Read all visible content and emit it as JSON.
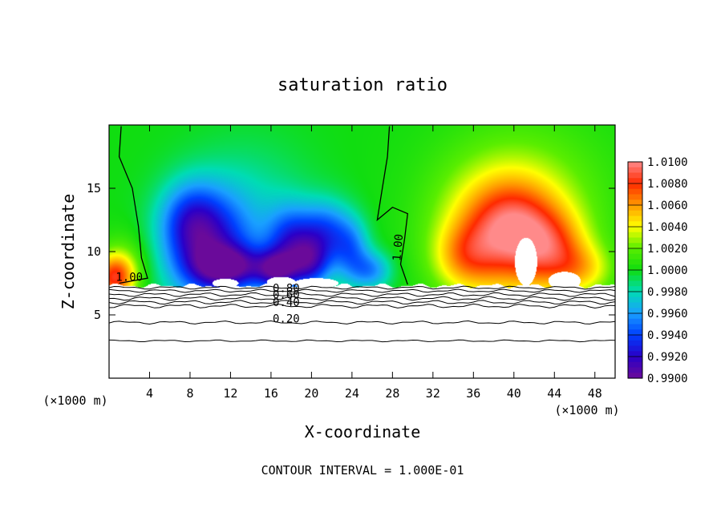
{
  "chart_data": {
    "type": "heatmap",
    "title": "saturation ratio",
    "xlabel": "X-coordinate",
    "ylabel": "Z-coordinate",
    "x_unit_label": "(×1000 m)",
    "y_unit_label": "(×1000 m)",
    "xlim": [
      0,
      50
    ],
    "ylim": [
      0,
      20
    ],
    "x_ticks": [
      4,
      8,
      12,
      16,
      20,
      24,
      28,
      32,
      36,
      40,
      44,
      48
    ],
    "x_tick_labels": [
      "4",
      "8",
      "12",
      "16",
      "20",
      "24",
      "28",
      "32",
      "36",
      "40",
      "44",
      "48"
    ],
    "y_ticks": [
      5,
      10,
      15
    ],
    "y_tick_labels": [
      "5",
      "10",
      "15"
    ],
    "footer": "CONTOUR INTERVAL = 1.000E-01",
    "colorbar": {
      "min": 0.99,
      "max": 1.01,
      "tick_values": [
        1.01,
        1.008,
        1.006,
        1.004,
        1.002,
        1.0,
        0.998,
        0.996,
        0.994,
        0.992,
        0.99
      ],
      "tick_labels": [
        "1.0100",
        "1.0080",
        "1.0060",
        "1.0040",
        "1.0020",
        "1.0000",
        "0.9980",
        "0.9960",
        "0.9940",
        "0.9920",
        "0.9900"
      ],
      "colors": [
        "#6a0a9a",
        "#2a00c8",
        "#0040ff",
        "#1aa0ff",
        "#00dcb4",
        "#10dd10",
        "#5aee00",
        "#ffff00",
        "#ff9a00",
        "#ff2a00",
        "#ff8a8a"
      ]
    },
    "contour_labels": [
      {
        "text": "1.00",
        "x": 2,
        "z": 7.7
      },
      {
        "text": "1.00",
        "x": 28.9,
        "z": 10.3
      },
      {
        "text": "0.80",
        "x": 17.5,
        "z": 6.8
      },
      {
        "text": "0.60",
        "x": 17.5,
        "z": 6.3
      },
      {
        "text": "0.40",
        "x": 17.5,
        "z": 5.7
      },
      {
        "text": "0.20",
        "x": 17.5,
        "z": 4.4
      }
    ],
    "lower_contours": [
      {
        "z": 7.15,
        "wiggle": 0.08
      },
      {
        "z": 6.9,
        "wiggle": 0.08
      },
      {
        "z": 6.6,
        "wiggle": 0.1
      },
      {
        "z": 6.3,
        "wiggle": 0.1
      },
      {
        "z": 6.0,
        "wiggle": 0.1
      },
      {
        "z": 5.7,
        "wiggle": 0.1
      },
      {
        "z": 4.4,
        "wiggle": 0.08
      },
      {
        "z": 2.95,
        "wiggle": 0.05
      }
    ],
    "cloud_base_z": 7.3,
    "blobs": [
      {
        "x": 0.5,
        "z": 7.9,
        "rx": 2,
        "rz": 1.8,
        "v": 0.007
      },
      {
        "x": 1.5,
        "z": 9.0,
        "rx": 2.5,
        "rz": 2.5,
        "v": 0.002
      },
      {
        "x": 10,
        "z": 10,
        "rx": 4.5,
        "rz": 4.5,
        "v": -0.007
      },
      {
        "x": 8,
        "z": 12.5,
        "rx": 3,
        "rz": 3,
        "v": -0.004
      },
      {
        "x": 12,
        "z": 8.8,
        "rx": 3.5,
        "rz": 1.6,
        "v": -0.006
      },
      {
        "x": 18,
        "z": 10.5,
        "rx": 2.5,
        "rz": 3,
        "v": -0.006
      },
      {
        "x": 16.5,
        "z": 8.5,
        "rx": 2,
        "rz": 1.5,
        "v": -0.006
      },
      {
        "x": 21.5,
        "z": 11.5,
        "rx": 2.5,
        "rz": 2.5,
        "v": -0.005
      },
      {
        "x": 24,
        "z": 10,
        "rx": 1.8,
        "rz": 2.5,
        "v": -0.004
      },
      {
        "x": 20,
        "z": 9,
        "rx": 2,
        "rz": 2,
        "v": -0.005
      },
      {
        "x": 26,
        "z": 8.5,
        "rx": 2,
        "rz": 1.5,
        "v": -0.004
      },
      {
        "x": 14,
        "z": 14,
        "rx": 6,
        "rz": 5,
        "v": -0.0015
      },
      {
        "x": 39,
        "z": 11,
        "rx": 6,
        "rz": 5,
        "v": 0.006
      },
      {
        "x": 40,
        "z": 12,
        "rx": 4.5,
        "rz": 3.5,
        "v": 0.003
      },
      {
        "x": 44,
        "z": 10,
        "rx": 3.5,
        "rz": 3,
        "v": 0.004
      },
      {
        "x": 35,
        "z": 9.5,
        "rx": 3,
        "rz": 2.5,
        "v": 0.003
      },
      {
        "x": 47,
        "z": 8.5,
        "rx": 3,
        "rz": 2,
        "v": 0.003
      },
      {
        "x": 41,
        "z": 15,
        "rx": 9,
        "rz": 6,
        "v": 0.002
      }
    ],
    "holes": [
      {
        "x": 41.2,
        "z": 9.2,
        "rx": 1.1,
        "rz": 1.9
      },
      {
        "x": 45,
        "z": 7.7,
        "rx": 1.6,
        "rz": 0.7
      },
      {
        "x": 20.5,
        "z": 7.5,
        "rx": 2.2,
        "rz": 0.4
      },
      {
        "x": 17,
        "z": 7.6,
        "rx": 1.4,
        "rz": 0.4
      },
      {
        "x": 11.5,
        "z": 7.5,
        "rx": 1.3,
        "rz": 0.35
      }
    ],
    "contour_1_00": [
      {
        "points": [
          [
            1.2,
            19.9
          ],
          [
            1.0,
            17.5
          ],
          [
            2.3,
            15.0
          ],
          [
            2.9,
            12.0
          ],
          [
            3.2,
            9.5
          ],
          [
            3.8,
            7.9
          ],
          [
            1.0,
            7.5
          ]
        ]
      },
      {
        "points": [
          [
            27.7,
            19.9
          ],
          [
            27.5,
            17.5
          ],
          [
            27.0,
            15.0
          ],
          [
            26.5,
            12.5
          ],
          [
            28.0,
            13.5
          ],
          [
            29.5,
            13.0
          ],
          [
            29.2,
            11.0
          ],
          [
            28.8,
            9.0
          ],
          [
            29.5,
            7.4
          ]
        ]
      }
    ]
  }
}
